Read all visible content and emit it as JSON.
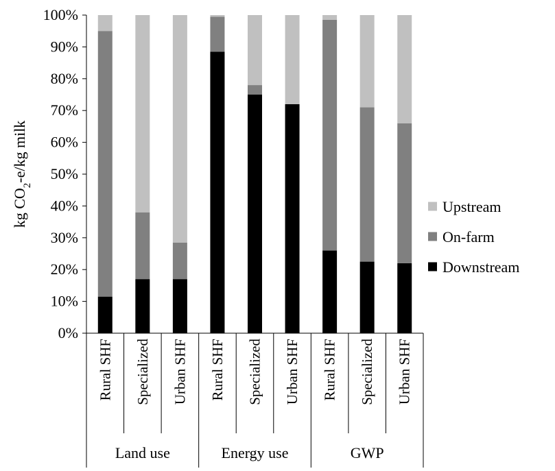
{
  "chart_data": {
    "type": "bar",
    "stacked": "percent",
    "ylabel": "kg CO2-e/kg milk",
    "ylabel_parts": {
      "prefix": "kg CO",
      "subscript": "2",
      "suffix": "-e/kg milk"
    },
    "ylim": [
      0,
      100
    ],
    "yticks": [
      "0%",
      "10%",
      "20%",
      "30%",
      "40%",
      "50%",
      "60%",
      "70%",
      "80%",
      "90%",
      "100%"
    ],
    "categories": [
      "Rural SHF",
      "Specialized",
      "Urban SHF",
      "Rural SHF",
      "Specialized",
      "Urban SHF",
      "Rural SHF",
      "Specialized",
      "Urban SHF"
    ],
    "groups": [
      {
        "label": "Land use",
        "span": 3
      },
      {
        "label": "Energy use",
        "span": 3
      },
      {
        "label": "GWP",
        "span": 3
      }
    ],
    "series": [
      {
        "name": "Downstream",
        "color": "#000000",
        "values": [
          11.5,
          17,
          17,
          88.5,
          75,
          72,
          26,
          22.5,
          22
        ]
      },
      {
        "name": "On-farm",
        "color": "#808080",
        "values": [
          83.5,
          21,
          11.5,
          11,
          3,
          0,
          72.5,
          48.5,
          44
        ]
      },
      {
        "name": "Upstream",
        "color": "#c0c0c0",
        "values": [
          5,
          62,
          71.5,
          0.5,
          22,
          28,
          1.5,
          29,
          34
        ]
      }
    ],
    "legend_order": [
      "Upstream",
      "On-farm",
      "Downstream"
    ],
    "legend_position": "right",
    "grid": false
  }
}
